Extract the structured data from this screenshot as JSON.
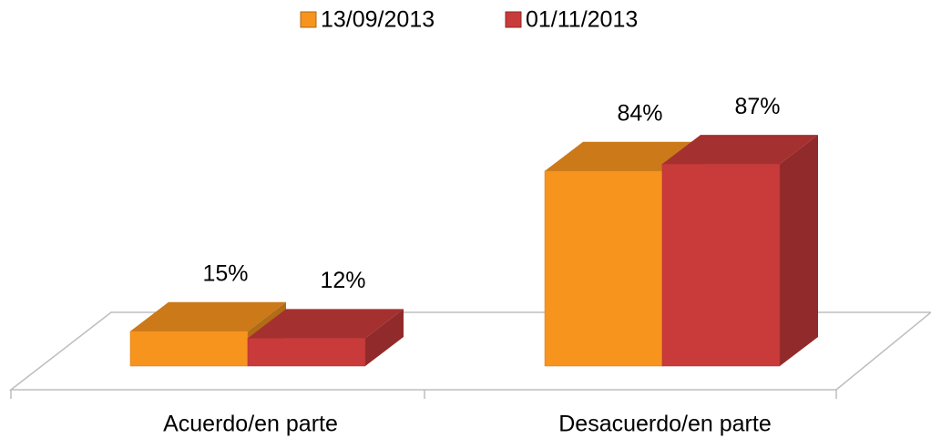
{
  "chart_data": {
    "type": "bar3d",
    "categories": [
      "Acuerdo/en parte",
      "Desacuerdo/en parte"
    ],
    "series": [
      {
        "name": "13/09/2013",
        "color": "#f7941e",
        "values": [
          15,
          84
        ],
        "value_labels": [
          "15%",
          "84%"
        ]
      },
      {
        "name": "01/11/2013",
        "color": "#c93a3a",
        "values": [
          12,
          87
        ],
        "value_labels": [
          "12%",
          "87%"
        ]
      }
    ],
    "ylim": [
      0,
      100
    ],
    "legend": "top"
  }
}
